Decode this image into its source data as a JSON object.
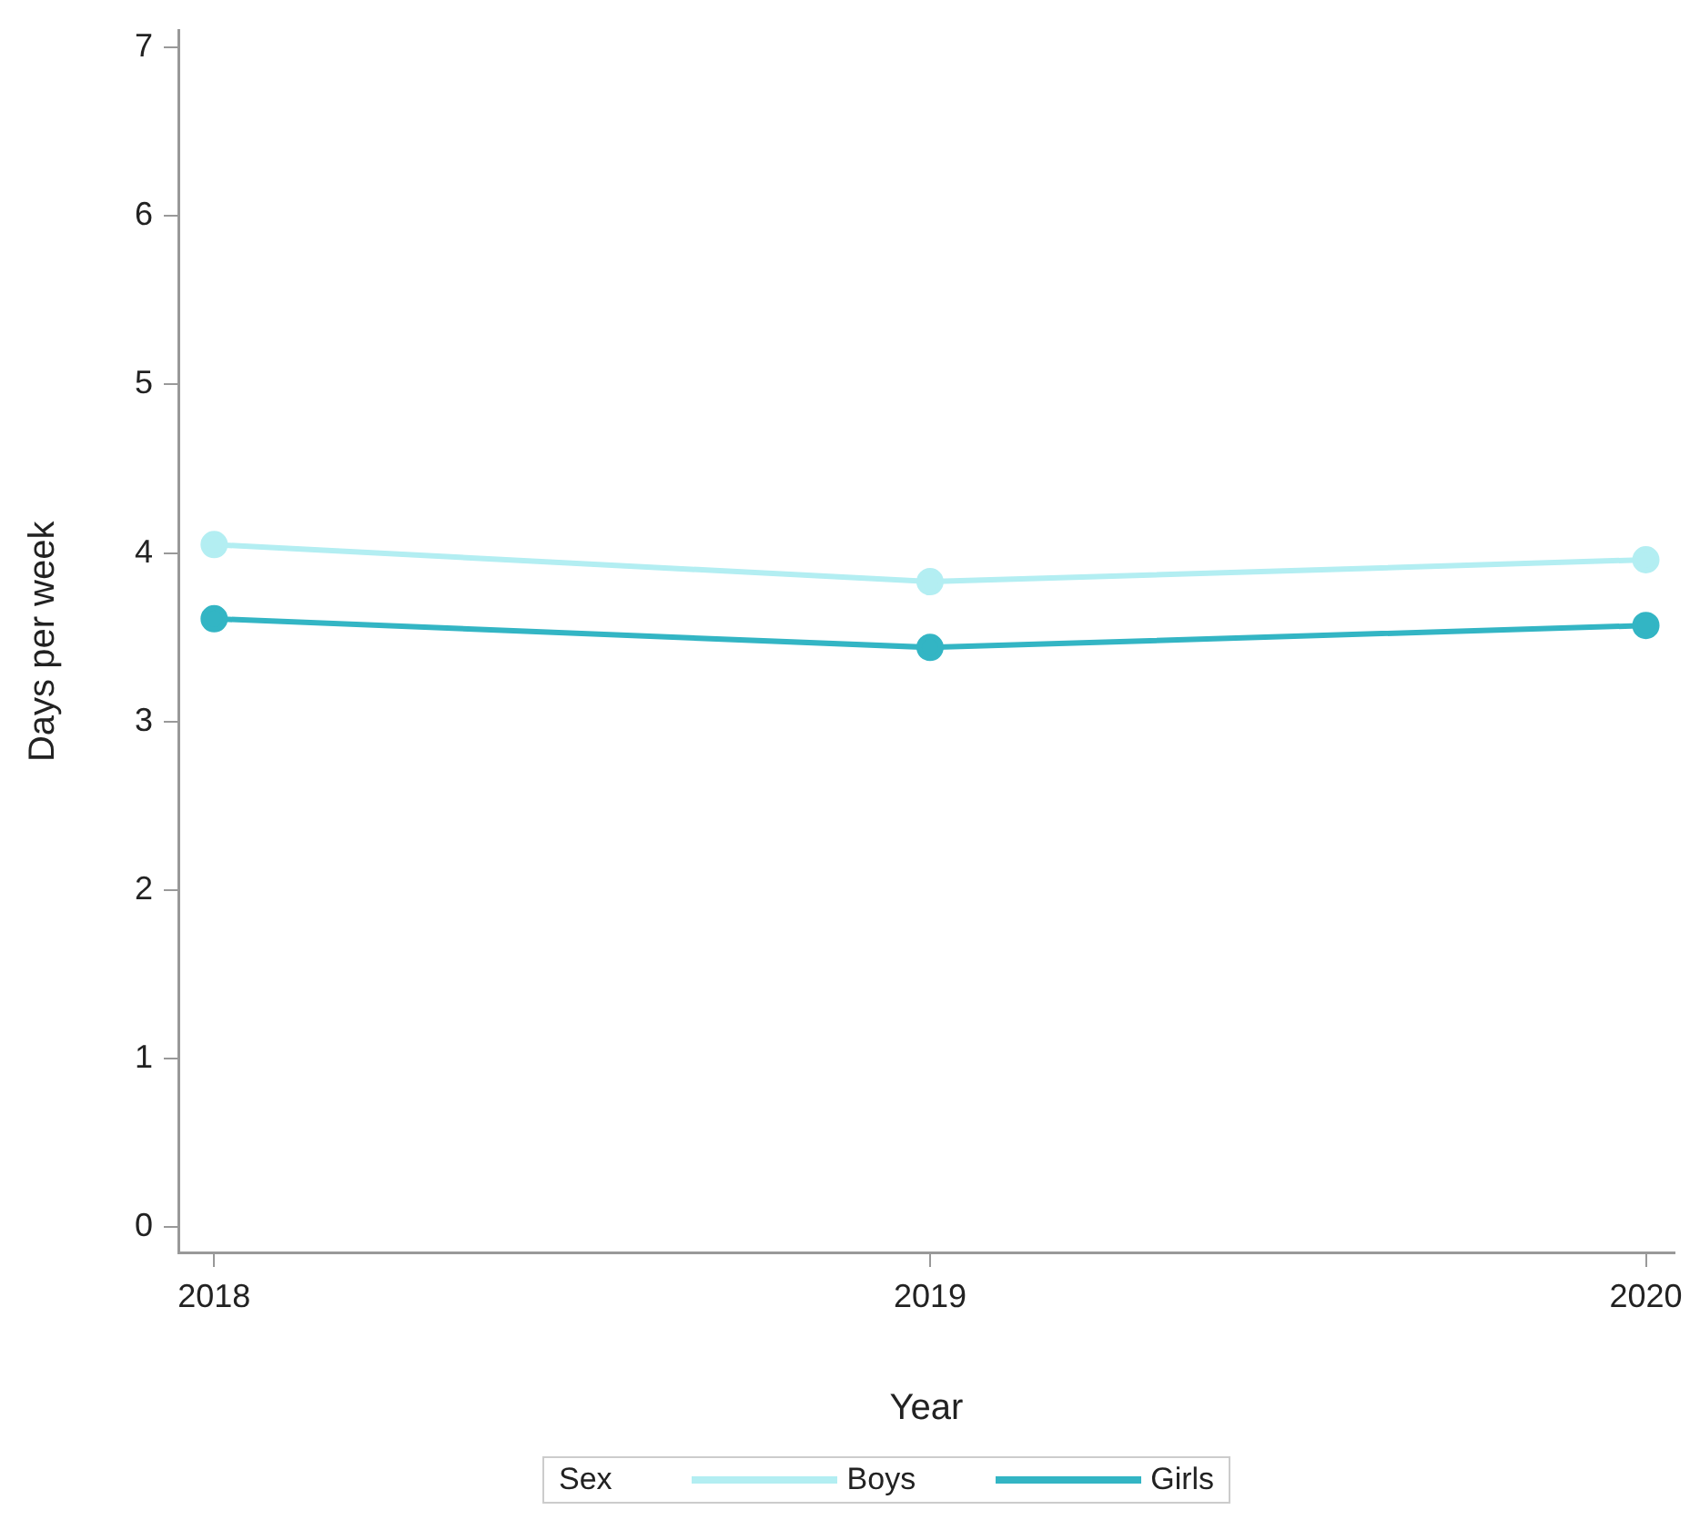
{
  "chart_data": {
    "type": "line",
    "xlabel": "Year",
    "ylabel": "Days per week",
    "x": [
      2018,
      2019,
      2020
    ],
    "xlim": [
      2017.95,
      2020.04
    ],
    "xticks": [
      2018,
      2019,
      2020
    ],
    "ylim": [
      -0.15,
      7.1
    ],
    "yticks": [
      0,
      1,
      2,
      3,
      4,
      5,
      6,
      7
    ],
    "grid": false,
    "legend": "bottom",
    "legend_title": "Sex",
    "marker": "circle",
    "line_style": "solid",
    "series": [
      {
        "name": "Boys",
        "color": "#b3eef2",
        "values": [
          4.05,
          3.83,
          3.96
        ]
      },
      {
        "name": "Girls",
        "color": "#33b5c4",
        "values": [
          3.61,
          3.44,
          3.57
        ]
      }
    ]
  }
}
